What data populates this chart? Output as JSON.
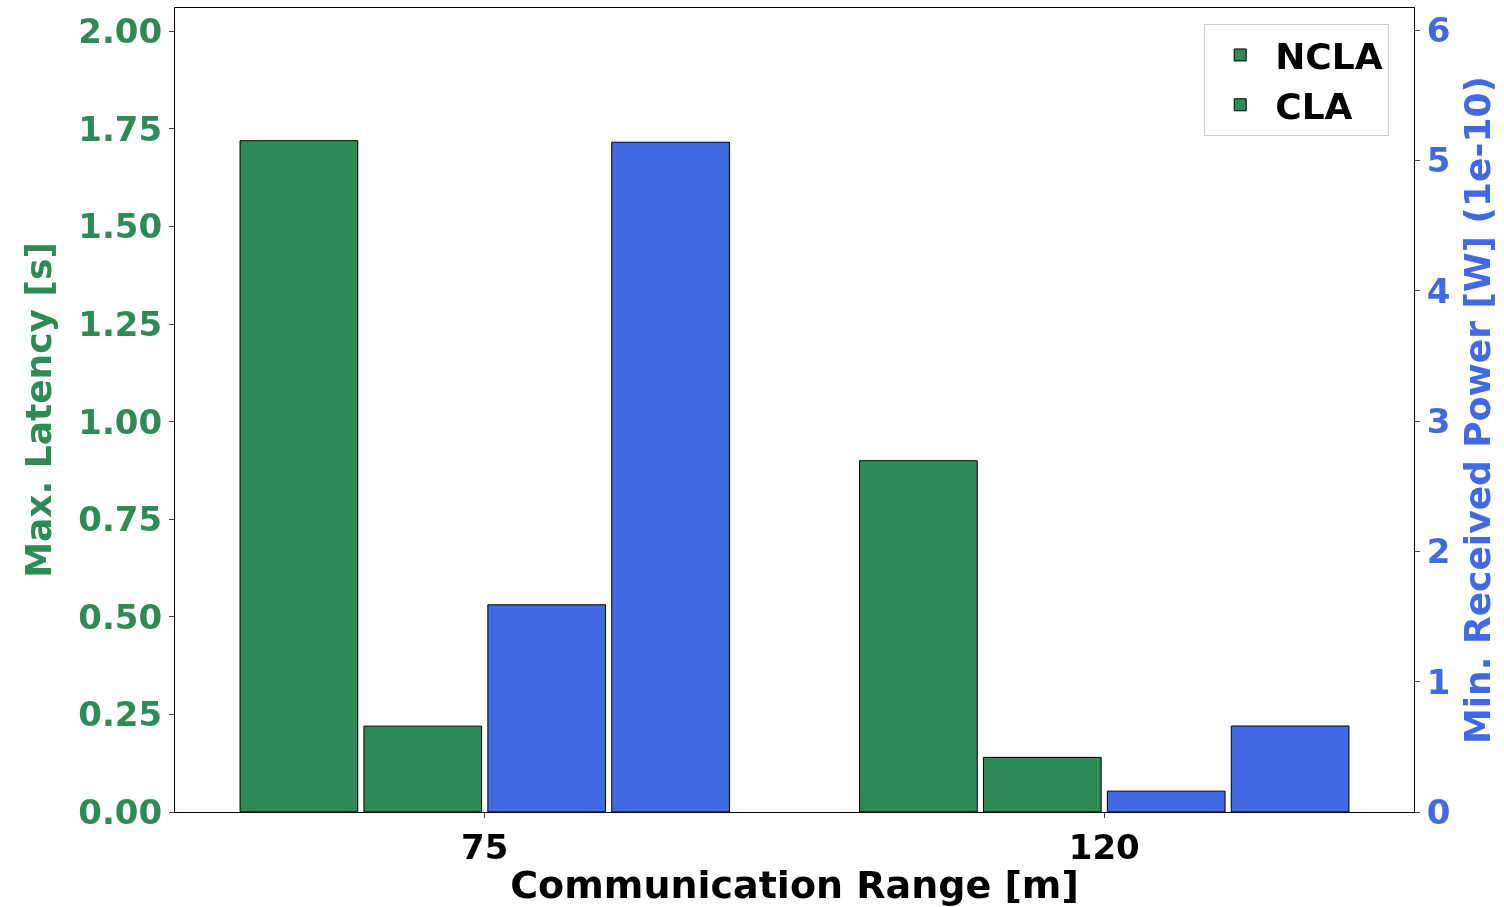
{
  "chart_data": {
    "type": "bar",
    "xlabel": "Communication Range [m]",
    "ylabel": "Max. Latency [s]",
    "y2label": "Min. Received Power [W] (1e-10)",
    "categories": [
      "75",
      "120"
    ],
    "series": [
      {
        "name": "NCLA",
        "color": "#2e8b57",
        "values": [
          1.72,
          0.9
        ]
      },
      {
        "name": "CLA",
        "color": "#2e8b57",
        "values": [
          0.22,
          0.14
        ]
      },
      {
        "color": "#4169e1",
        "axis": "y2",
        "values": [
          1.59,
          0.16
        ]
      },
      {
        "color": "#4169e1",
        "axis": "y2",
        "values": [
          5.14,
          0.66
        ]
      }
    ],
    "ylim": [
      0,
      2.06
    ],
    "yticks": [
      {
        "value": 0,
        "label": "0.00"
      },
      {
        "value": 0.25,
        "label": "0.25"
      },
      {
        "value": 0.5,
        "label": "0.50"
      },
      {
        "value": 0.75,
        "label": "0.75"
      },
      {
        "value": 1,
        "label": "1.00"
      },
      {
        "value": 1.25,
        "label": "1.25"
      },
      {
        "value": 1.5,
        "label": "1.50"
      },
      {
        "value": 1.75,
        "label": "1.75"
      },
      {
        "value": 2,
        "label": "2.00"
      }
    ],
    "y2lim": [
      0,
      6.17
    ],
    "y2ticks": [
      0,
      1,
      2,
      3,
      4,
      5,
      6
    ],
    "legend": "top right"
  }
}
